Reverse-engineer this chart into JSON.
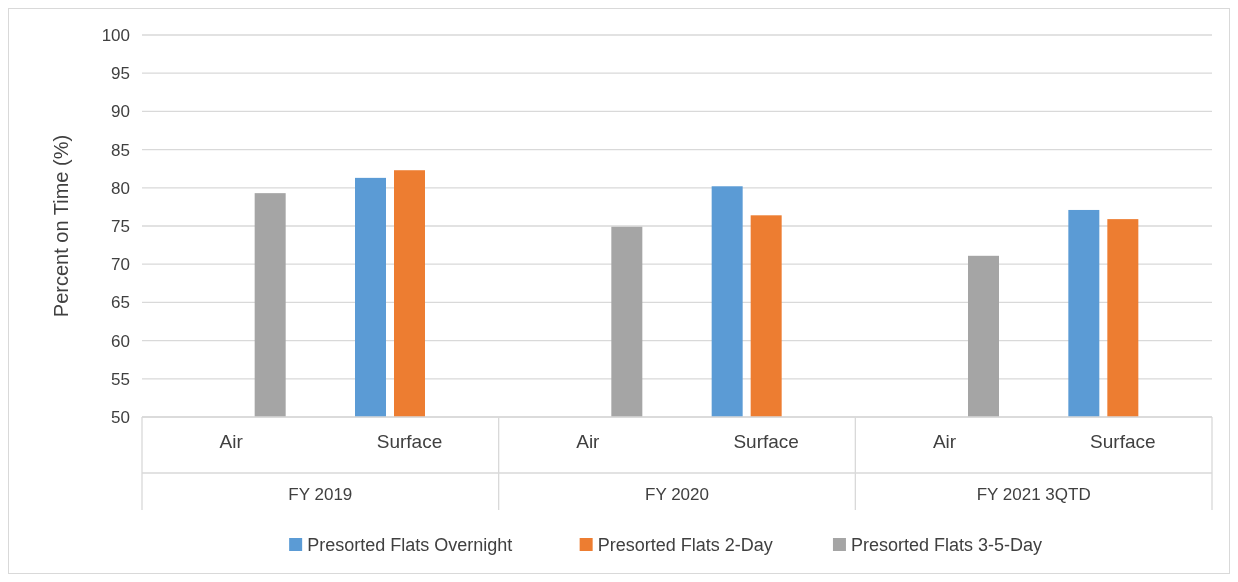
{
  "chart_data": {
    "type": "bar",
    "ylabel": "Percent on Time (%)",
    "categories": [
      "Air",
      "Surface",
      "Air",
      "Surface",
      "Air",
      "Surface"
    ],
    "series": [
      {
        "name": "Presorted Flats Overnight",
        "color": "#5b9bd5",
        "values": [
          null,
          81.3,
          null,
          80.2,
          null,
          77.1
        ]
      },
      {
        "name": "Presorted Flats 2-Day",
        "color": "#ed7d31",
        "values": [
          null,
          82.3,
          null,
          76.4,
          null,
          75.9
        ]
      },
      {
        "name": "Presorted Flats 3-5-Day",
        "color": "#a5a5a5",
        "values": [
          79.3,
          null,
          74.9,
          null,
          71.1,
          null
        ]
      }
    ],
    "annotations": [
      "FY 2019",
      "FY 2020",
      "FY 2021 3QTD"
    ],
    "ylim": [
      50,
      100
    ],
    "yticks": [
      50,
      55,
      60,
      65,
      70,
      75,
      80,
      85,
      90,
      95,
      100
    ],
    "grid": "y",
    "legend": "bottom"
  }
}
